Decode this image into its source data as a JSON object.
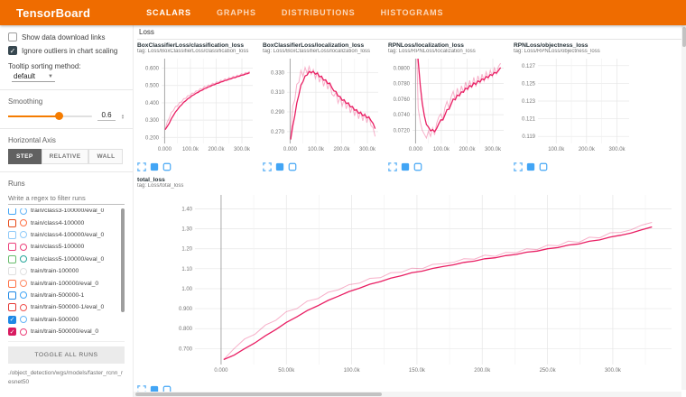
{
  "header": {
    "title": "TensorBoard",
    "tabs": [
      {
        "label": "SCALARS",
        "active": true
      },
      {
        "label": "GRAPHS",
        "active": false
      },
      {
        "label": "DISTRIBUTIONS",
        "active": false
      },
      {
        "label": "HISTOGRAMS",
        "active": false
      }
    ]
  },
  "sidebar": {
    "show_download_links": {
      "label": "Show data download links",
      "checked": false
    },
    "ignore_outliers": {
      "label": "Ignore outliers in chart scaling",
      "checked": true
    },
    "tooltip_sort": {
      "label": "Tooltip sorting method:",
      "value": "default"
    },
    "smoothing": {
      "label": "Smoothing",
      "value": "0.6",
      "percent": 60
    },
    "horizontal_axis": {
      "label": "Horizontal Axis",
      "options": [
        "STEP",
        "RELATIVE",
        "WALL"
      ],
      "selected": "STEP"
    },
    "runs": {
      "label": "Runs",
      "filter_placeholder": "Write a regex to filter runs",
      "toggle_all_label": "TOGGLE ALL RUNS",
      "logdir_path": "./object_detection/wgs/models/faster_rcnn_resnet50",
      "items": [
        {
          "label": "train/class3-100000/eval_0",
          "color": "#42A5F5",
          "circle": "#64B5F6",
          "checked": false
        },
        {
          "label": "train/class4-100000",
          "color": "#E64A19",
          "circle": "#FF7043",
          "checked": false
        },
        {
          "label": "train/class4-100000/eval_0",
          "color": "#90CAF9",
          "circle": "#90CAF9",
          "checked": false
        },
        {
          "label": "train/class5-100000",
          "color": "#EC407A",
          "circle": "#EC407A",
          "checked": false
        },
        {
          "label": "train/class5-100000/eval_0",
          "color": "#66BB6A",
          "circle": "#26A69A",
          "checked": false
        },
        {
          "label": "train/train-100000",
          "color": "#E0E0E0",
          "circle": "#E0E0E0",
          "checked": false
        },
        {
          "label": "train/train-100000/eval_0",
          "color": "#FF7043",
          "circle": "#FF8A65",
          "checked": false
        },
        {
          "label": "train/train-500000-1",
          "color": "#1E88E5",
          "circle": "#42A5F5",
          "checked": false
        },
        {
          "label": "train/train-500000-1/eval_0",
          "color": "#E53935",
          "circle": "#EF5350",
          "checked": false
        },
        {
          "label": "train/train-500000",
          "color": "#1E88E5",
          "circle": "#64B5F6",
          "checked": true
        },
        {
          "label": "train/train-500000/eval_0",
          "color": "#D81B60",
          "circle": "#EC407A",
          "checked": true
        }
      ]
    }
  },
  "main": {
    "category_header": "Loss"
  },
  "chart_toolbar": {
    "icons": [
      "expand-chart-icon",
      "toggle-log-scale-icon",
      "pin-card-icon"
    ]
  },
  "colors": {
    "accent_orange": "#EF6C00",
    "run_line": "#E91E63",
    "grid": "#e6e6e6",
    "zero_line": "#a8a8a8"
  },
  "chart_data": [
    {
      "id": "box_classification_loss",
      "type": "line",
      "size": "small",
      "title": "BoxClassifierLoss/classification_loss",
      "tag": "tag: Loss/BoxClassifierLoss/classification_loss",
      "xlim": [
        -12000,
        342000
      ],
      "ylim": [
        0.165,
        0.655
      ],
      "xticks": {
        "values": [
          0,
          100000,
          200000,
          300000
        ],
        "labels": [
          "0.000",
          "100.0k",
          "200.0k",
          "300.0k"
        ]
      },
      "yticks": {
        "values": [
          0.2,
          0.3,
          0.4,
          0.5,
          0.6
        ],
        "labels": [
          "0.200",
          "0.300",
          "0.400",
          "0.500",
          "0.600"
        ]
      },
      "x_start": 2000,
      "x_step": 8000,
      "values": [
        0.245,
        0.29,
        0.312,
        0.345,
        0.355,
        0.378,
        0.382,
        0.402,
        0.405,
        0.424,
        0.425,
        0.442,
        0.44,
        0.456,
        0.455,
        0.469,
        0.467,
        0.482,
        0.479,
        0.494,
        0.49,
        0.503,
        0.5,
        0.513,
        0.509,
        0.521,
        0.517,
        0.53,
        0.526,
        0.538,
        0.533,
        0.546,
        0.541,
        0.553,
        0.548,
        0.56,
        0.556,
        0.568,
        0.563,
        0.575,
        0.572,
        0.582
      ]
    },
    {
      "id": "box_localization_loss",
      "type": "line",
      "size": "small",
      "title": "BoxClassifierLoss/localization_loss",
      "tag": "tag: Loss/BoxClassifierLoss/localization_loss",
      "xlim": [
        -12000,
        342000
      ],
      "ylim": [
        0.258,
        0.344
      ],
      "xticks": {
        "values": [
          0,
          100000,
          200000,
          300000
        ],
        "labels": [
          "0.000",
          "100.0k",
          "200.0k",
          "300.0k"
        ]
      },
      "yticks": {
        "values": [
          0.27,
          0.29,
          0.31,
          0.33
        ],
        "labels": [
          "0.270",
          "0.290",
          "0.310",
          "0.330"
        ]
      },
      "x_start": 2000,
      "x_step": 8000,
      "values": [
        0.262,
        0.296,
        0.302,
        0.318,
        0.32,
        0.332,
        0.326,
        0.335,
        0.329,
        0.336,
        0.328,
        0.333,
        0.324,
        0.331,
        0.32,
        0.327,
        0.316,
        0.323,
        0.313,
        0.32,
        0.308,
        0.306,
        0.31,
        0.299,
        0.305,
        0.296,
        0.303,
        0.293,
        0.3,
        0.289,
        0.296,
        0.286,
        0.293,
        0.283,
        0.291,
        0.281,
        0.289,
        0.279,
        0.286,
        0.276,
        0.274,
        0.265
      ]
    },
    {
      "id": "rpn_localization_loss",
      "type": "line",
      "size": "small",
      "title": "RPNLoss/localization_loss",
      "tag": "tag: Loss/RPNLoss/localization_loss",
      "xlim": [
        -12000,
        342000
      ],
      "ylim": [
        0.0703,
        0.0812
      ],
      "xticks": {
        "values": [
          0,
          100000,
          200000,
          300000
        ],
        "labels": [
          "0.000",
          "100.0k",
          "200.0k",
          "300.0k"
        ]
      },
      "yticks": {
        "values": [
          0.072,
          0.074,
          0.076,
          0.078,
          0.08
        ],
        "labels": [
          "0.0720",
          "0.0740",
          "0.0760",
          "0.0780",
          "0.0800"
        ]
      },
      "x_start": 2000,
      "x_step": 8000,
      "values": [
        0.085,
        0.0748,
        0.0731,
        0.072,
        0.0715,
        0.071,
        0.0719,
        0.0712,
        0.0723,
        0.0714,
        0.0729,
        0.0737,
        0.0741,
        0.0733,
        0.0749,
        0.0757,
        0.0748,
        0.0763,
        0.077,
        0.0758,
        0.0774,
        0.0763,
        0.0777,
        0.0768,
        0.0782,
        0.0771,
        0.0784,
        0.0774,
        0.0788,
        0.0776,
        0.079,
        0.078,
        0.0792,
        0.0783,
        0.0795,
        0.0786,
        0.0797,
        0.0789,
        0.08,
        0.0792,
        0.0802,
        0.0806
      ]
    },
    {
      "id": "rpn_objectness_loss",
      "type": "line",
      "size": "small",
      "title": "RPNLoss/objectness_loss",
      "tag": "tag: Loss/RPNLoss/objectness_loss",
      "xlim": [
        40000,
        340000
      ],
      "ylim": [
        0.1182,
        0.1278
      ],
      "xticks": {
        "values": [
          100000,
          200000,
          300000
        ],
        "labels": [
          "100.0k",
          "200.0k",
          "300.0k"
        ]
      },
      "yticks": {
        "values": [
          0.119,
          0.121,
          0.123,
          0.125,
          0.127
        ],
        "labels": [
          "0.119",
          "0.121",
          "0.123",
          "0.125",
          "0.127"
        ]
      },
      "x_start": 2000,
      "x_step": 8000,
      "values": []
    },
    {
      "id": "total_loss",
      "type": "line",
      "size": "big",
      "title": "total_loss",
      "tag": "tag: Loss/total_loss",
      "xlim": [
        -20000,
        345000
      ],
      "ylim": [
        0.62,
        1.47
      ],
      "xticks": {
        "values": [
          0,
          50000,
          100000,
          150000,
          200000,
          250000,
          300000
        ],
        "labels": [
          "0.000",
          "50.00k",
          "100.0k",
          "150.0k",
          "200.0k",
          "250.0k",
          "300.0k"
        ]
      },
      "yticks": {
        "values": [
          0.7,
          0.8,
          0.9,
          1.0,
          1.1,
          1.2,
          1.3,
          1.4
        ],
        "labels": [
          "0.700",
          "0.800",
          "0.900",
          "1.00",
          "1.10",
          "1.20",
          "1.30",
          "1.40"
        ]
      },
      "x_start": 2000,
      "x_step": 8000,
      "values": [
        0.645,
        0.7,
        0.748,
        0.772,
        0.818,
        0.842,
        0.885,
        0.9,
        0.938,
        0.95,
        0.982,
        0.995,
        1.02,
        1.028,
        1.052,
        1.055,
        1.08,
        1.082,
        1.103,
        1.1,
        1.122,
        1.125,
        1.132,
        1.15,
        1.148,
        1.168,
        1.162,
        1.182,
        1.18,
        1.2,
        1.196,
        1.218,
        1.215,
        1.238,
        1.232,
        1.258,
        1.255,
        1.28,
        1.282,
        1.295,
        1.318,
        1.332
      ]
    }
  ]
}
